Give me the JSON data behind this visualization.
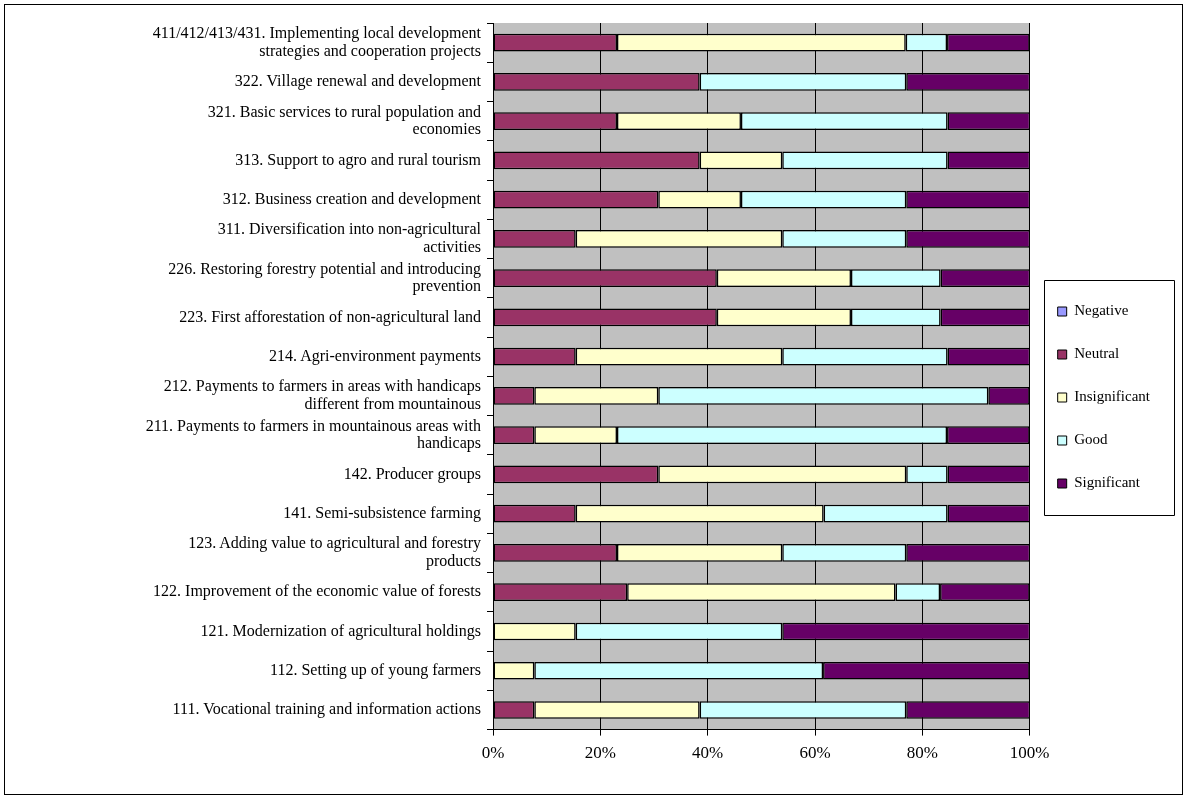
{
  "chart_data": {
    "type": "bar",
    "orientation": "horizontal",
    "stacked": true,
    "grid": "x",
    "legend": "right",
    "categories": [
      "411/412/413/431. Implementing local development strategies and cooperation projects",
      "322. Village renewal and development",
      "321. Basic services to rural population and economies",
      "313. Support to agro and rural tourism",
      "312. Business creation and development",
      "311. Diversification into non-agricultural activities",
      "226. Restoring forestry potential and introducing prevention",
      "223. First afforestation of non-agricultural land",
      "214. Agri-environment payments",
      "212. Payments to farmers in areas with handicaps different from mountainous",
      "211. Payments to farmers in mountainous areas with handicaps",
      "142. Producer groups",
      "141. Semi-subsistence farming",
      "123. Adding value to agricultural and forestry products",
      "122. Improvement of the economic value of forests",
      "121. Modernization of agricultural holdings",
      "112. Setting up of young farmers",
      "111. Vocational training and information actions"
    ],
    "series": [
      {
        "name": "Negative",
        "color": "#9999ff",
        "values": [
          0,
          0,
          0,
          0,
          0,
          0,
          0,
          0,
          0,
          0,
          0,
          0,
          0,
          0,
          0,
          0,
          0,
          0
        ]
      },
      {
        "name": "Neutral",
        "color": "#993366",
        "values": [
          23.1,
          38.5,
          23.1,
          38.5,
          30.8,
          15.4,
          41.7,
          41.7,
          15.4,
          7.7,
          7.7,
          30.8,
          15.4,
          23.1,
          25,
          0,
          0,
          7.7
        ]
      },
      {
        "name": "Insignificant",
        "color": "#ffffcc",
        "values": [
          53.8,
          0,
          23.1,
          15.4,
          15.4,
          38.5,
          25,
          25,
          38.5,
          23.1,
          15.4,
          46.2,
          46.2,
          30.8,
          50,
          15.4,
          7.7,
          30.8
        ]
      },
      {
        "name": "Good",
        "color": "#ccffff",
        "values": [
          7.7,
          38.5,
          38.5,
          30.8,
          30.8,
          23.1,
          16.7,
          16.7,
          30.8,
          61.5,
          61.5,
          7.7,
          23.1,
          23.1,
          8.3,
          38.5,
          53.8,
          38.5
        ]
      },
      {
        "name": "Significant",
        "color": "#660066",
        "values": [
          15.4,
          23.1,
          15.4,
          15.4,
          23.1,
          23.1,
          16.7,
          16.7,
          15.4,
          7.7,
          15.4,
          15.4,
          15.4,
          23.1,
          16.7,
          46.2,
          38.5,
          23.1
        ]
      }
    ],
    "xlim": [
      0,
      100
    ],
    "xticks": [
      {
        "value": 0,
        "label": "0%"
      },
      {
        "value": 20,
        "label": "20%"
      },
      {
        "value": 40,
        "label": "40%"
      },
      {
        "value": 60,
        "label": "60%"
      },
      {
        "value": 80,
        "label": "80%"
      },
      {
        "value": 100,
        "label": "100%"
      }
    ]
  }
}
